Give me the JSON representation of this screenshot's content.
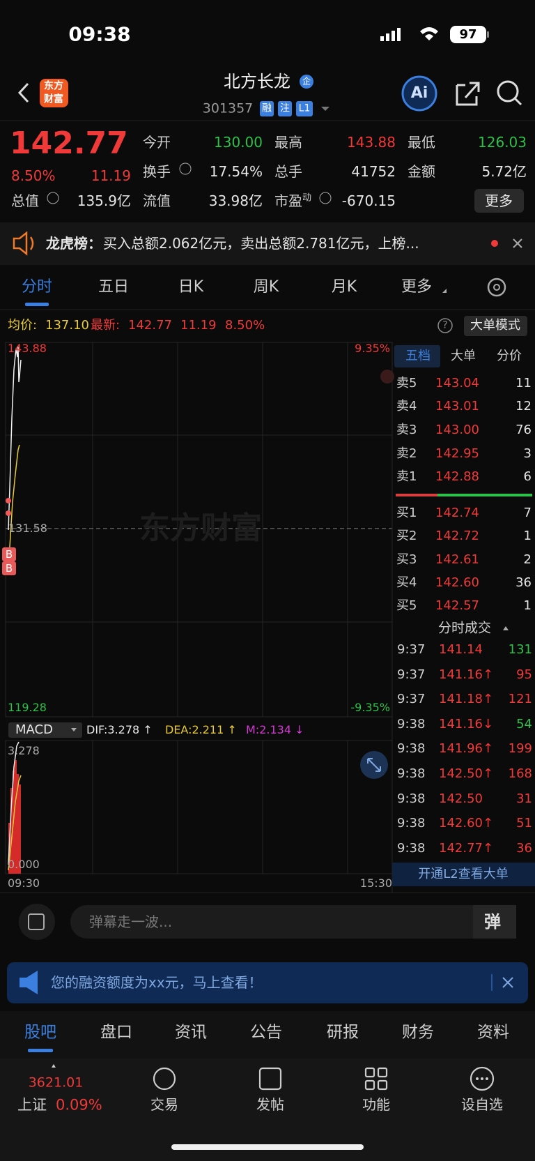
{
  "status_bar": {
    "time": "09:38",
    "battery": "97"
  },
  "header": {
    "logo": [
      "东方",
      "财富"
    ],
    "name": "北方长龙",
    "badge": "企",
    "code": "301357",
    "tags": [
      "融",
      "注",
      "L1"
    ],
    "ai": "Ai"
  },
  "quote": {
    "price": "142.77",
    "change_pct": "8.50%",
    "change": "11.19",
    "more": "更多",
    "stats": [
      {
        "label": "今开",
        "value": "130.00",
        "color": "#2ec04a"
      },
      {
        "label": "最高",
        "value": "143.88",
        "color": "#f03a3a"
      },
      {
        "label": "最低",
        "value": "126.03",
        "color": "#2ec04a"
      },
      {
        "label": "换手",
        "value": "17.54%",
        "color": "#e6e6e6"
      },
      {
        "label": "总手",
        "value": "41752",
        "color": "#e6e6e6"
      },
      {
        "label": "金额",
        "value": "5.72亿",
        "color": "#e6e6e6"
      },
      {
        "label": "总值",
        "value": "135.9亿",
        "color": "#e6e6e6"
      },
      {
        "label": "流值",
        "value": "33.98亿",
        "color": "#e6e6e6"
      },
      {
        "label": "市盈",
        "sup": "动",
        "value": "-670.15",
        "color": "#e6e6e6"
      }
    ]
  },
  "notice": {
    "label": "龙虎榜：",
    "text": "买入总额2.062亿元，卖出总额2.781亿元，上榜..."
  },
  "tabs": [
    "分时",
    "五日",
    "日K",
    "周K",
    "月K",
    "更多"
  ],
  "summary": {
    "avg_label": "均价:",
    "avg": "137.10",
    "latest_label": "最新:",
    "latest": "142.77",
    "change": "11.19",
    "pct": "8.50%",
    "mode": "大单模式"
  },
  "chart": {
    "high": "143.88",
    "low": "119.28",
    "mid": "131.58",
    "pct_high": "9.35%",
    "pct_low": "-9.35%",
    "watermark": "东方财富",
    "markers": [
      "B",
      "B"
    ],
    "time_start": "09:30",
    "time_end": "15:30"
  },
  "macd": {
    "label": "MACD",
    "dif": "DIF:3.278 ↑",
    "dea": "DEA:2.211 ↑",
    "m": "M:2.134 ↓",
    "top": "3.278",
    "bottom": "0.000"
  },
  "order_book": {
    "tabs": [
      "五档",
      "大单",
      "分价"
    ],
    "asks": [
      {
        "label": "卖5",
        "price": "143.04",
        "vol": "11"
      },
      {
        "label": "卖4",
        "price": "143.01",
        "vol": "12"
      },
      {
        "label": "卖3",
        "price": "143.00",
        "vol": "76"
      },
      {
        "label": "卖2",
        "price": "142.95",
        "vol": "3"
      },
      {
        "label": "卖1",
        "price": "142.88",
        "vol": "6"
      }
    ],
    "bids": [
      {
        "label": "买1",
        "price": "142.74",
        "vol": "7"
      },
      {
        "label": "买2",
        "price": "142.72",
        "vol": "1"
      },
      {
        "label": "买3",
        "price": "142.61",
        "vol": "2"
      },
      {
        "label": "买4",
        "price": "142.60",
        "vol": "36"
      },
      {
        "label": "买5",
        "price": "142.57",
        "vol": "1"
      }
    ]
  },
  "trades": {
    "title": "分时成交",
    "rows": [
      {
        "time": "9:37",
        "price": "141.14",
        "vol": "131",
        "vol_color": "#2ec04a"
      },
      {
        "time": "9:37",
        "price": "141.16↑",
        "vol": "95",
        "vol_color": "#f03a3a"
      },
      {
        "time": "9:37",
        "price": "141.18↑",
        "vol": "121",
        "vol_color": "#f03a3a"
      },
      {
        "time": "9:38",
        "price": "141.16↓",
        "vol": "54",
        "vol_color": "#2ec04a"
      },
      {
        "time": "9:38",
        "price": "141.96↑",
        "vol": "199",
        "vol_color": "#f03a3a"
      },
      {
        "time": "9:38",
        "price": "142.50↑",
        "vol": "168",
        "vol_color": "#f03a3a"
      },
      {
        "time": "9:38",
        "price": "142.50",
        "vol": "31",
        "vol_color": "#f03a3a"
      },
      {
        "time": "9:38",
        "price": "142.60↑",
        "vol": "51",
        "vol_color": "#f03a3a"
      },
      {
        "time": "9:38",
        "price": "142.77↑",
        "vol": "36",
        "vol_color": "#f03a3a"
      }
    ],
    "banner": "开通L2查看大单"
  },
  "comment": {
    "placeholder": "弹幕走一波...",
    "button": "弹"
  },
  "promo": {
    "text": "您的融资额度为xx元，马上查看！"
  },
  "bottom_tabs": [
    "股吧",
    "盘口",
    "资讯",
    "公告",
    "研报",
    "财务",
    "资料"
  ],
  "nav": {
    "index_value": "3621.01",
    "index_name": "上证",
    "index_pct": "0.09%",
    "items": [
      "交易",
      "发帖",
      "功能",
      "设自选"
    ]
  }
}
